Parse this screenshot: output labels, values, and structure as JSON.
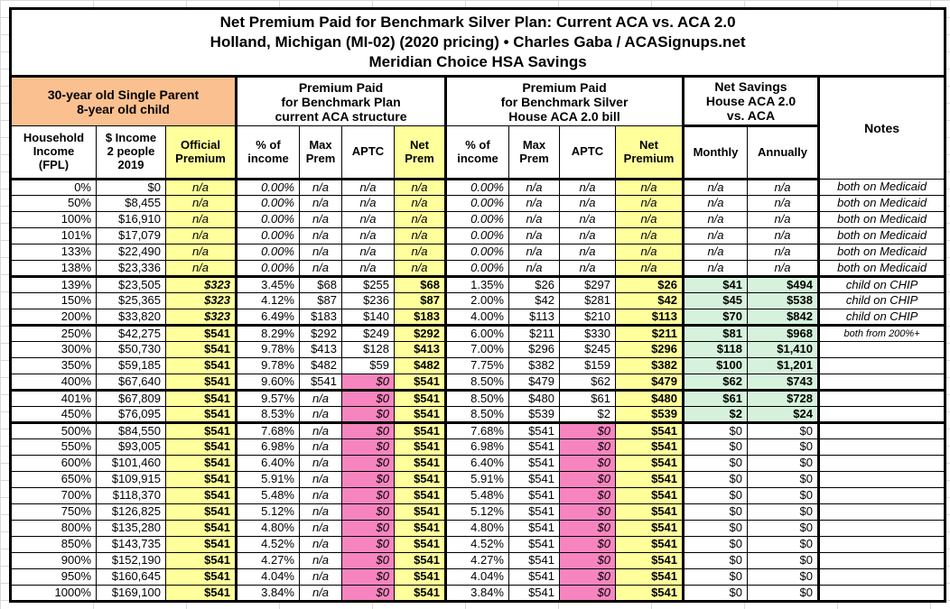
{
  "chart_data": {
    "type": "table",
    "title": "Net Premium Paid for Benchmark Silver Plan: Current ACA vs. ACA 2.0",
    "title_lines": [
      "Net Premium Paid for Benchmark Silver Plan: Current ACA vs. ACA 2.0",
      "Holland, Michigan (MI-02) (2020 pricing) • Charles Gaba / ACASignups.net",
      "Meridian Choice HSA Savings"
    ],
    "group_headers": [
      {
        "label": "30-year old Single Parent\n8-year old child",
        "span": 3
      },
      {
        "label": "Premium Paid\nfor Benchmark Plan\ncurrent ACA structure",
        "span": 4
      },
      {
        "label": "Premium Paid\nfor Benchmark Silver\nHouse ACA 2.0 bill",
        "span": 4
      },
      {
        "label": "Net Savings\nHouse ACA 2.0\nvs. ACA",
        "span": 2
      }
    ],
    "notes_header": "Notes",
    "columns": [
      "Household\nIncome\n(FPL)",
      "$ Income\n2 people\n2019",
      "Official\nPremium",
      "% of\nincome",
      "Max\nPrem",
      "APTC",
      "Net\nPrem",
      "% of\nincome",
      "Max\nPrem",
      "APTC",
      "Net\nPremium",
      "Monthly",
      "Annually",
      "Notes"
    ],
    "rows": [
      [
        "0%",
        "$0",
        "n/a",
        "0.00%",
        "n/a",
        "n/a",
        "n/a",
        "0.00%",
        "n/a",
        "n/a",
        "n/a",
        "n/a",
        "n/a",
        "both on Medicaid"
      ],
      [
        "50%",
        "$8,455",
        "n/a",
        "0.00%",
        "n/a",
        "n/a",
        "n/a",
        "0.00%",
        "n/a",
        "n/a",
        "n/a",
        "n/a",
        "n/a",
        "both on Medicaid"
      ],
      [
        "100%",
        "$16,910",
        "n/a",
        "0.00%",
        "n/a",
        "n/a",
        "n/a",
        "0.00%",
        "n/a",
        "n/a",
        "n/a",
        "n/a",
        "n/a",
        "both on Medicaid"
      ],
      [
        "101%",
        "$17,079",
        "n/a",
        "0.00%",
        "n/a",
        "n/a",
        "n/a",
        "0.00%",
        "n/a",
        "n/a",
        "n/a",
        "n/a",
        "n/a",
        "both on Medicaid"
      ],
      [
        "133%",
        "$22,490",
        "n/a",
        "0.00%",
        "n/a",
        "n/a",
        "n/a",
        "0.00%",
        "n/a",
        "n/a",
        "n/a",
        "n/a",
        "n/a",
        "both on Medicaid"
      ],
      [
        "138%",
        "$23,336",
        "n/a",
        "0.00%",
        "n/a",
        "n/a",
        "n/a",
        "0.00%",
        "n/a",
        "n/a",
        "n/a",
        "n/a",
        "n/a",
        "both on Medicaid"
      ],
      [
        "139%",
        "$23,505",
        "$323",
        "3.45%",
        "$68",
        "$255",
        "$68",
        "1.35%",
        "$26",
        "$297",
        "$26",
        "$41",
        "$494",
        "child on CHIP"
      ],
      [
        "150%",
        "$25,365",
        "$323",
        "4.12%",
        "$87",
        "$236",
        "$87",
        "2.00%",
        "$42",
        "$281",
        "$42",
        "$45",
        "$538",
        "child on CHIP"
      ],
      [
        "200%",
        "$33,820",
        "$323",
        "6.49%",
        "$183",
        "$140",
        "$183",
        "4.00%",
        "$113",
        "$210",
        "$113",
        "$70",
        "$842",
        "child on CHIP"
      ],
      [
        "250%",
        "$42,275",
        "$541",
        "8.29%",
        "$292",
        "$249",
        "$292",
        "6.00%",
        "$211",
        "$330",
        "$211",
        "$81",
        "$968",
        "both from 200%+"
      ],
      [
        "300%",
        "$50,730",
        "$541",
        "9.78%",
        "$413",
        "$128",
        "$413",
        "7.00%",
        "$296",
        "$245",
        "$296",
        "$118",
        "$1,410",
        ""
      ],
      [
        "350%",
        "$59,185",
        "$541",
        "9.78%",
        "$482",
        "$59",
        "$482",
        "7.75%",
        "$382",
        "$159",
        "$382",
        "$100",
        "$1,201",
        ""
      ],
      [
        "400%",
        "$67,640",
        "$541",
        "9.60%",
        "$541",
        "$0",
        "$541",
        "8.50%",
        "$479",
        "$62",
        "$479",
        "$62",
        "$743",
        ""
      ],
      [
        "401%",
        "$67,809",
        "$541",
        "9.57%",
        "n/a",
        "$0",
        "$541",
        "8.50%",
        "$480",
        "$61",
        "$480",
        "$61",
        "$728",
        ""
      ],
      [
        "450%",
        "$76,095",
        "$541",
        "8.53%",
        "n/a",
        "$0",
        "$541",
        "8.50%",
        "$539",
        "$2",
        "$539",
        "$2",
        "$24",
        ""
      ],
      [
        "500%",
        "$84,550",
        "$541",
        "7.68%",
        "n/a",
        "$0",
        "$541",
        "7.68%",
        "$541",
        "$0",
        "$541",
        "$0",
        "$0",
        ""
      ],
      [
        "550%",
        "$93,005",
        "$541",
        "6.98%",
        "n/a",
        "$0",
        "$541",
        "6.98%",
        "$541",
        "$0",
        "$541",
        "$0",
        "$0",
        ""
      ],
      [
        "600%",
        "$101,460",
        "$541",
        "6.40%",
        "n/a",
        "$0",
        "$541",
        "6.40%",
        "$541",
        "$0",
        "$541",
        "$0",
        "$0",
        ""
      ],
      [
        "650%",
        "$109,915",
        "$541",
        "5.91%",
        "n/a",
        "$0",
        "$541",
        "5.91%",
        "$541",
        "$0",
        "$541",
        "$0",
        "$0",
        ""
      ],
      [
        "700%",
        "$118,370",
        "$541",
        "5.48%",
        "n/a",
        "$0",
        "$541",
        "5.48%",
        "$541",
        "$0",
        "$541",
        "$0",
        "$0",
        ""
      ],
      [
        "750%",
        "$126,825",
        "$541",
        "5.12%",
        "n/a",
        "$0",
        "$541",
        "5.12%",
        "$541",
        "$0",
        "$541",
        "$0",
        "$0",
        ""
      ],
      [
        "800%",
        "$135,280",
        "$541",
        "4.80%",
        "n/a",
        "$0",
        "$541",
        "4.80%",
        "$541",
        "$0",
        "$541",
        "$0",
        "$0",
        ""
      ],
      [
        "850%",
        "$143,735",
        "$541",
        "4.52%",
        "n/a",
        "$0",
        "$541",
        "4.52%",
        "$541",
        "$0",
        "$541",
        "$0",
        "$0",
        ""
      ],
      [
        "900%",
        "$152,190",
        "$541",
        "4.27%",
        "n/a",
        "$0",
        "$541",
        "4.27%",
        "$541",
        "$0",
        "$541",
        "$0",
        "$0",
        ""
      ],
      [
        "950%",
        "$160,645",
        "$541",
        "4.04%",
        "n/a",
        "$0",
        "$541",
        "4.04%",
        "$541",
        "$0",
        "$541",
        "$0",
        "$0",
        ""
      ],
      [
        "1000%",
        "$169,100",
        "$541",
        "3.84%",
        "n/a",
        "$0",
        "$541",
        "3.84%",
        "$541",
        "$0",
        "$541",
        "$0",
        "$0",
        ""
      ]
    ],
    "row_group_ends": [
      5,
      8,
      12,
      14
    ],
    "colors": {
      "demographic_header": "#FAC090",
      "premium_highlight": "#FFFF9C",
      "zero_aptc_highlight": "#F685BF",
      "savings_highlight": "#D6F2DC"
    }
  }
}
